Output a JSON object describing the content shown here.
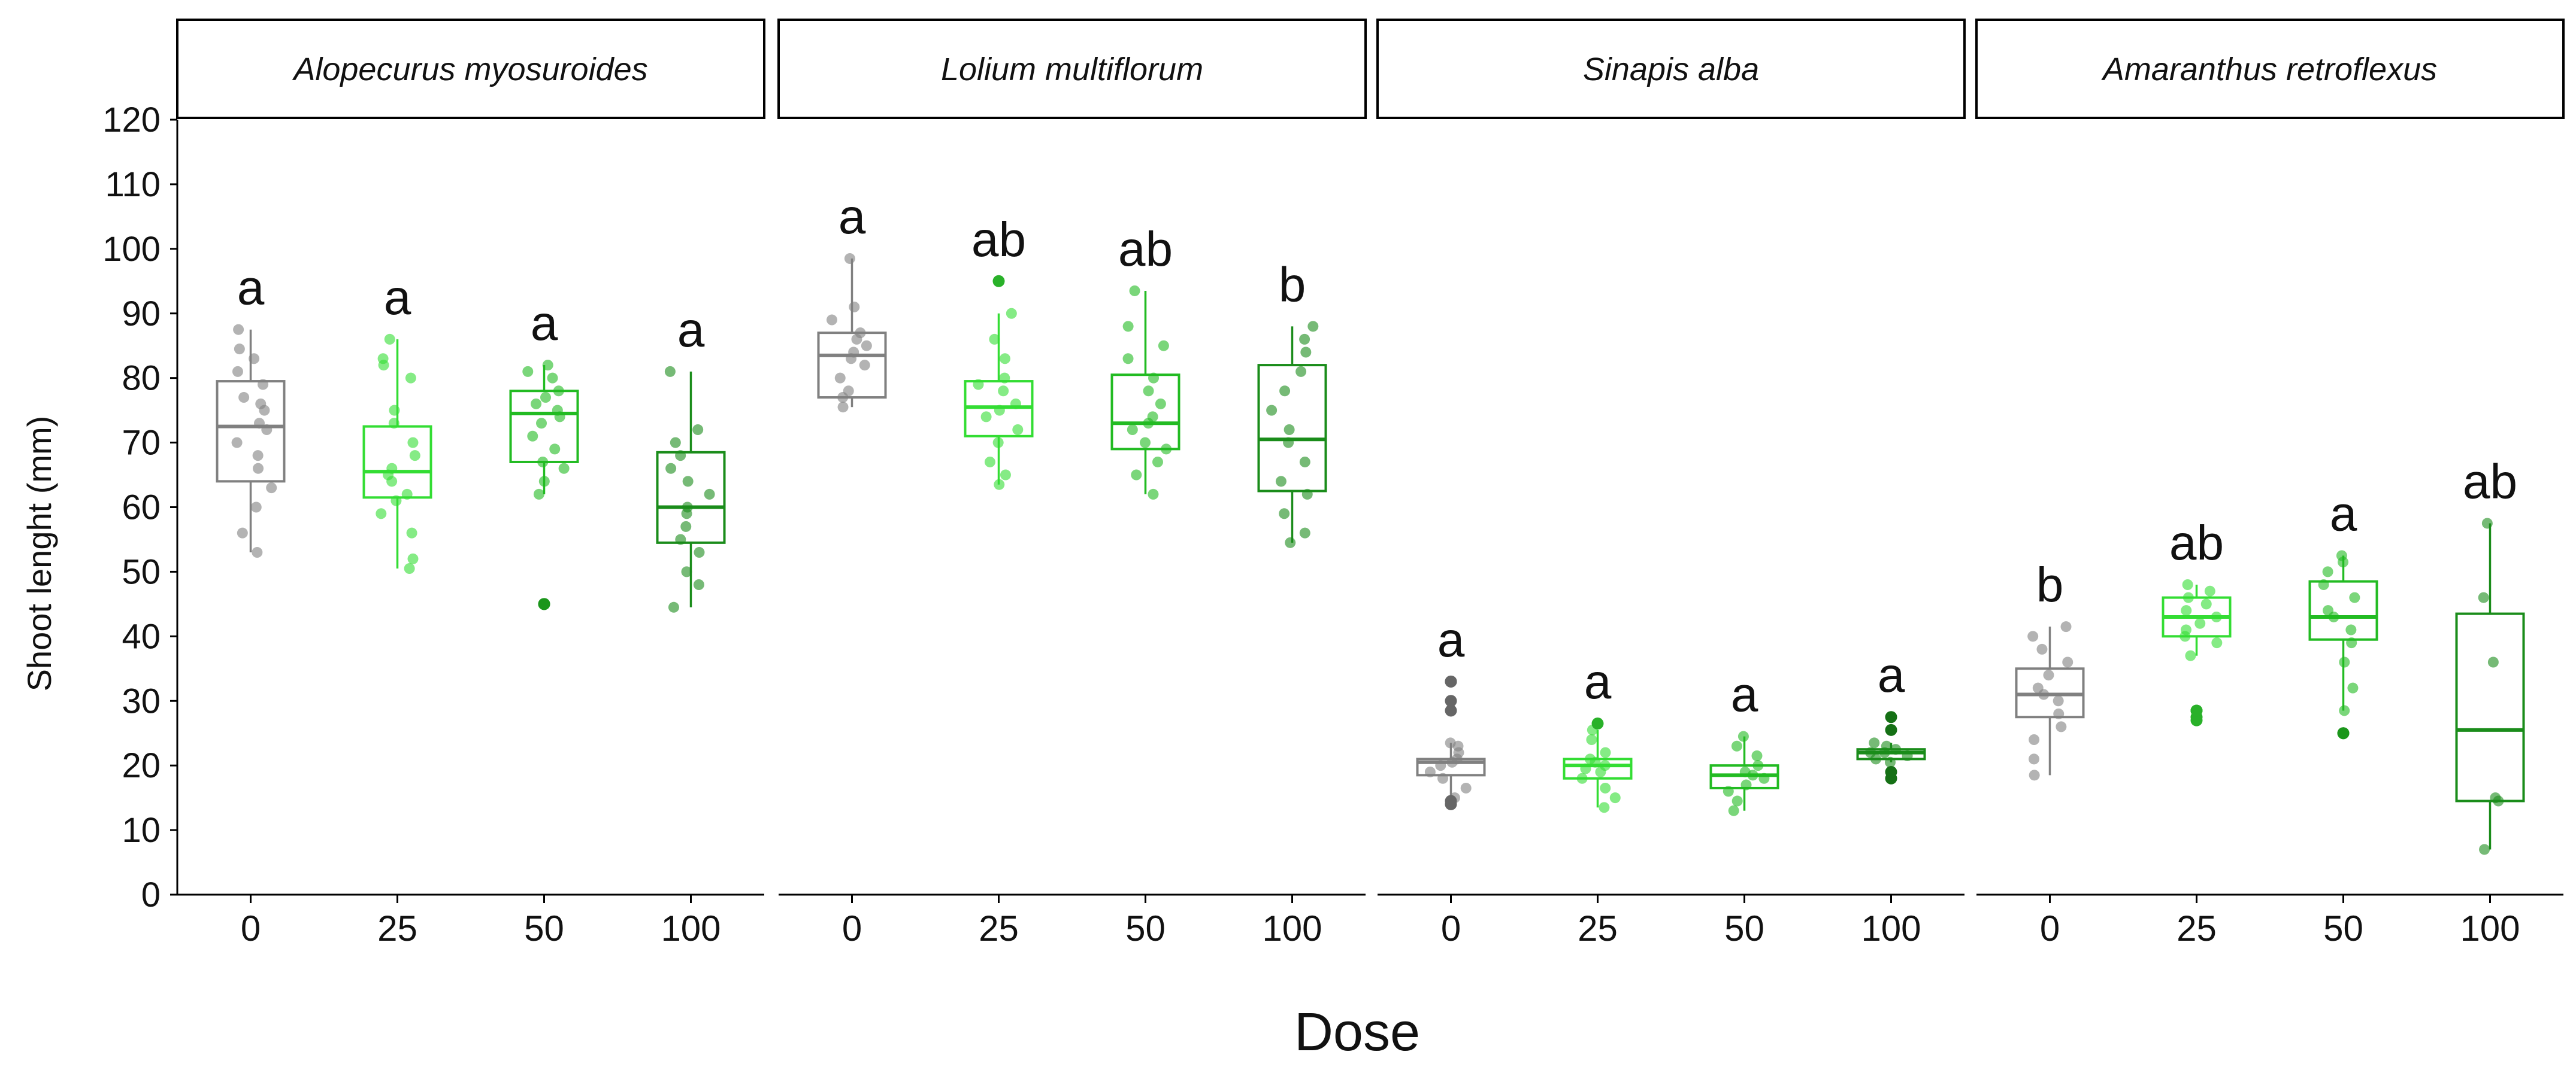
{
  "chart_data": {
    "type": "boxplot",
    "ylabel": "Shoot lenght (mm)",
    "xlabel": "Dose",
    "ylim": [
      0,
      120
    ],
    "yticks": [
      0,
      10,
      20,
      30,
      40,
      50,
      60,
      70,
      80,
      90,
      100,
      110,
      120
    ],
    "categories": [
      "0",
      "25",
      "50",
      "100"
    ],
    "dose_colors": {
      "0": "#808080",
      "25": "#33dd33",
      "50": "#22bb22",
      "100": "#1a8c1a"
    },
    "panels": [
      {
        "title": "Alopecurus myosuroides",
        "boxes": [
          {
            "dose": "0",
            "letter": "a",
            "q1": 64,
            "median": 72.5,
            "q3": 79.5,
            "lower": 53,
            "upper": 87.5,
            "points": [
              53,
              56,
              60,
              63,
              66,
              68,
              70,
              72,
              73,
              75,
              76,
              77,
              79,
              81,
              83,
              84.5,
              87.5
            ],
            "outliers": []
          },
          {
            "dose": "25",
            "letter": "a",
            "q1": 61.5,
            "median": 65.5,
            "q3": 72.5,
            "lower": 50.5,
            "upper": 86,
            "points": [
              50.5,
              52,
              56,
              59,
              61,
              62,
              64,
              65,
              66,
              68,
              70,
              73,
              75,
              80,
              82,
              83,
              86
            ],
            "outliers": []
          },
          {
            "dose": "50",
            "letter": "a",
            "q1": 67,
            "median": 74.5,
            "q3": 78,
            "lower": 62,
            "upper": 82,
            "points": [
              62,
              64,
              66,
              67,
              69,
              71,
              73,
              74,
              75,
              76,
              77,
              78,
              80,
              81,
              82
            ],
            "outliers": [
              45,
              45
            ]
          },
          {
            "dose": "100",
            "letter": "a",
            "q1": 54.5,
            "median": 60,
            "q3": 68.5,
            "lower": 44.5,
            "upper": 81,
            "points": [
              44.5,
              48,
              50,
              53,
              55,
              57,
              59,
              60,
              62,
              64,
              66,
              68,
              70,
              72,
              81
            ],
            "outliers": []
          }
        ]
      },
      {
        "title": "Lolium multiflorum",
        "boxes": [
          {
            "dose": "0",
            "letter": "a",
            "q1": 77,
            "median": 83.5,
            "q3": 87,
            "lower": 75.5,
            "upper": 98.5,
            "points": [
              75.5,
              77,
              78,
              80,
              82,
              83,
              84,
              85,
              86,
              87,
              89,
              91,
              98.5
            ],
            "outliers": []
          },
          {
            "dose": "25",
            "letter": "ab",
            "q1": 71,
            "median": 75.5,
            "q3": 79.5,
            "lower": 63.5,
            "upper": 90,
            "points": [
              63.5,
              65,
              67,
              70,
              72,
              74,
              75,
              76,
              78,
              79,
              80,
              83,
              86,
              90
            ],
            "outliers": [
              95
            ]
          },
          {
            "dose": "50",
            "letter": "ab",
            "q1": 69,
            "median": 73,
            "q3": 80.5,
            "lower": 62,
            "upper": 93.5,
            "points": [
              62,
              65,
              67,
              69,
              70,
              72,
              73,
              74,
              76,
              78,
              80,
              83,
              85,
              88,
              93.5
            ],
            "outliers": []
          },
          {
            "dose": "100",
            "letter": "b",
            "q1": 62.5,
            "median": 70.5,
            "q3": 82,
            "lower": 54.5,
            "upper": 88,
            "points": [
              54.5,
              56,
              59,
              62,
              64,
              67,
              70,
              72,
              75,
              78,
              81,
              84,
              86,
              88
            ],
            "outliers": []
          }
        ]
      },
      {
        "title": "Sinapis alba",
        "boxes": [
          {
            "dose": "0",
            "letter": "a",
            "q1": 18.5,
            "median": 20.5,
            "q3": 21,
            "lower": 15,
            "upper": 23.5,
            "points": [
              15,
              16.5,
              18,
              19,
              20,
              20.5,
              21,
              22,
              23,
              23.5
            ],
            "outliers": [
              14,
              14.5,
              28.5,
              30,
              33,
              33
            ]
          },
          {
            "dose": "25",
            "letter": "a",
            "q1": 18,
            "median": 20,
            "q3": 21,
            "lower": 13.5,
            "upper": 25.5,
            "points": [
              13.5,
              15,
              16.5,
              18,
              19,
              19.5,
              20,
              20.5,
              21,
              22,
              24,
              25.5
            ],
            "outliers": [
              26.5
            ]
          },
          {
            "dose": "50",
            "letter": "a",
            "q1": 16.5,
            "median": 18.5,
            "q3": 20,
            "lower": 13,
            "upper": 24.5,
            "points": [
              13,
              14.5,
              16,
              17,
              18,
              18.5,
              19,
              20,
              21.5,
              23,
              24.5
            ],
            "outliers": []
          },
          {
            "dose": "100",
            "letter": "a",
            "q1": 21,
            "median": 22,
            "q3": 22.5,
            "lower": 20.5,
            "upper": 23.5,
            "points": [
              20.5,
              21,
              21.5,
              22,
              22,
              22.5,
              23,
              23.5
            ],
            "outliers": [
              18,
              19,
              25.5,
              27.5
            ]
          }
        ]
      },
      {
        "title": "Amaranthus retroflexus",
        "boxes": [
          {
            "dose": "0",
            "letter": "b",
            "q1": 27.5,
            "median": 31,
            "q3": 35,
            "lower": 18.5,
            "upper": 41.5,
            "points": [
              18.5,
              21,
              24,
              26,
              28,
              30,
              31,
              32,
              34,
              36,
              38,
              40,
              41.5
            ],
            "outliers": []
          },
          {
            "dose": "25",
            "letter": "ab",
            "q1": 40,
            "median": 43,
            "q3": 46,
            "lower": 37,
            "upper": 48,
            "points": [
              37,
              39,
              40,
              41,
              42,
              43,
              44,
              45,
              46,
              47,
              48
            ],
            "outliers": [
              27,
              27.5,
              28.5,
              28.5
            ]
          },
          {
            "dose": "50",
            "letter": "a",
            "q1": 39.5,
            "median": 43,
            "q3": 48.5,
            "lower": 28.5,
            "upper": 52.5,
            "points": [
              28.5,
              32,
              36,
              39,
              41,
              43,
              44,
              46,
              48,
              50,
              51.5,
              52.5
            ],
            "outliers": [
              25,
              25
            ]
          },
          {
            "dose": "100",
            "letter": "ab",
            "q1": 14.5,
            "median": 25.5,
            "q3": 43.5,
            "lower": 7,
            "upper": 57.5,
            "points": [
              7,
              14.5,
              15,
              36,
              46,
              57.5
            ],
            "outliers": []
          }
        ]
      }
    ]
  }
}
